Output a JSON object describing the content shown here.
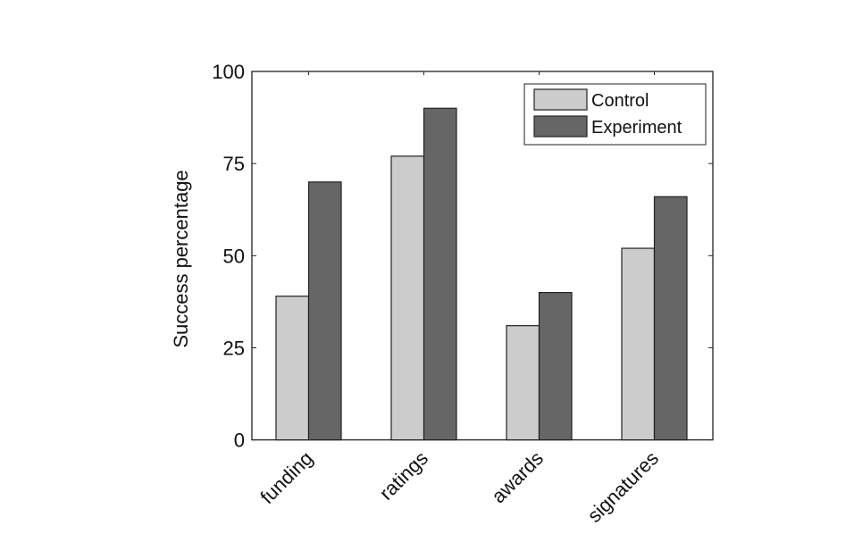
{
  "chart_data": {
    "type": "bar",
    "title": "",
    "xlabel": "",
    "ylabel": "Success percentage",
    "ylim": [
      0,
      100
    ],
    "yticks": [
      0,
      25,
      50,
      75,
      100
    ],
    "ytick_labels": [
      "0",
      "25",
      "50",
      "75",
      "100"
    ],
    "categories": [
      "funding",
      "ratings",
      "awards",
      "signatures"
    ],
    "series": [
      {
        "name": "Control",
        "color": "#cccccc",
        "values": [
          39,
          77,
          31,
          52
        ]
      },
      {
        "name": "Experiment",
        "color": "#666666",
        "values": [
          70,
          90,
          40,
          66
        ]
      }
    ],
    "legend_position": "top-right",
    "grid": false
  }
}
